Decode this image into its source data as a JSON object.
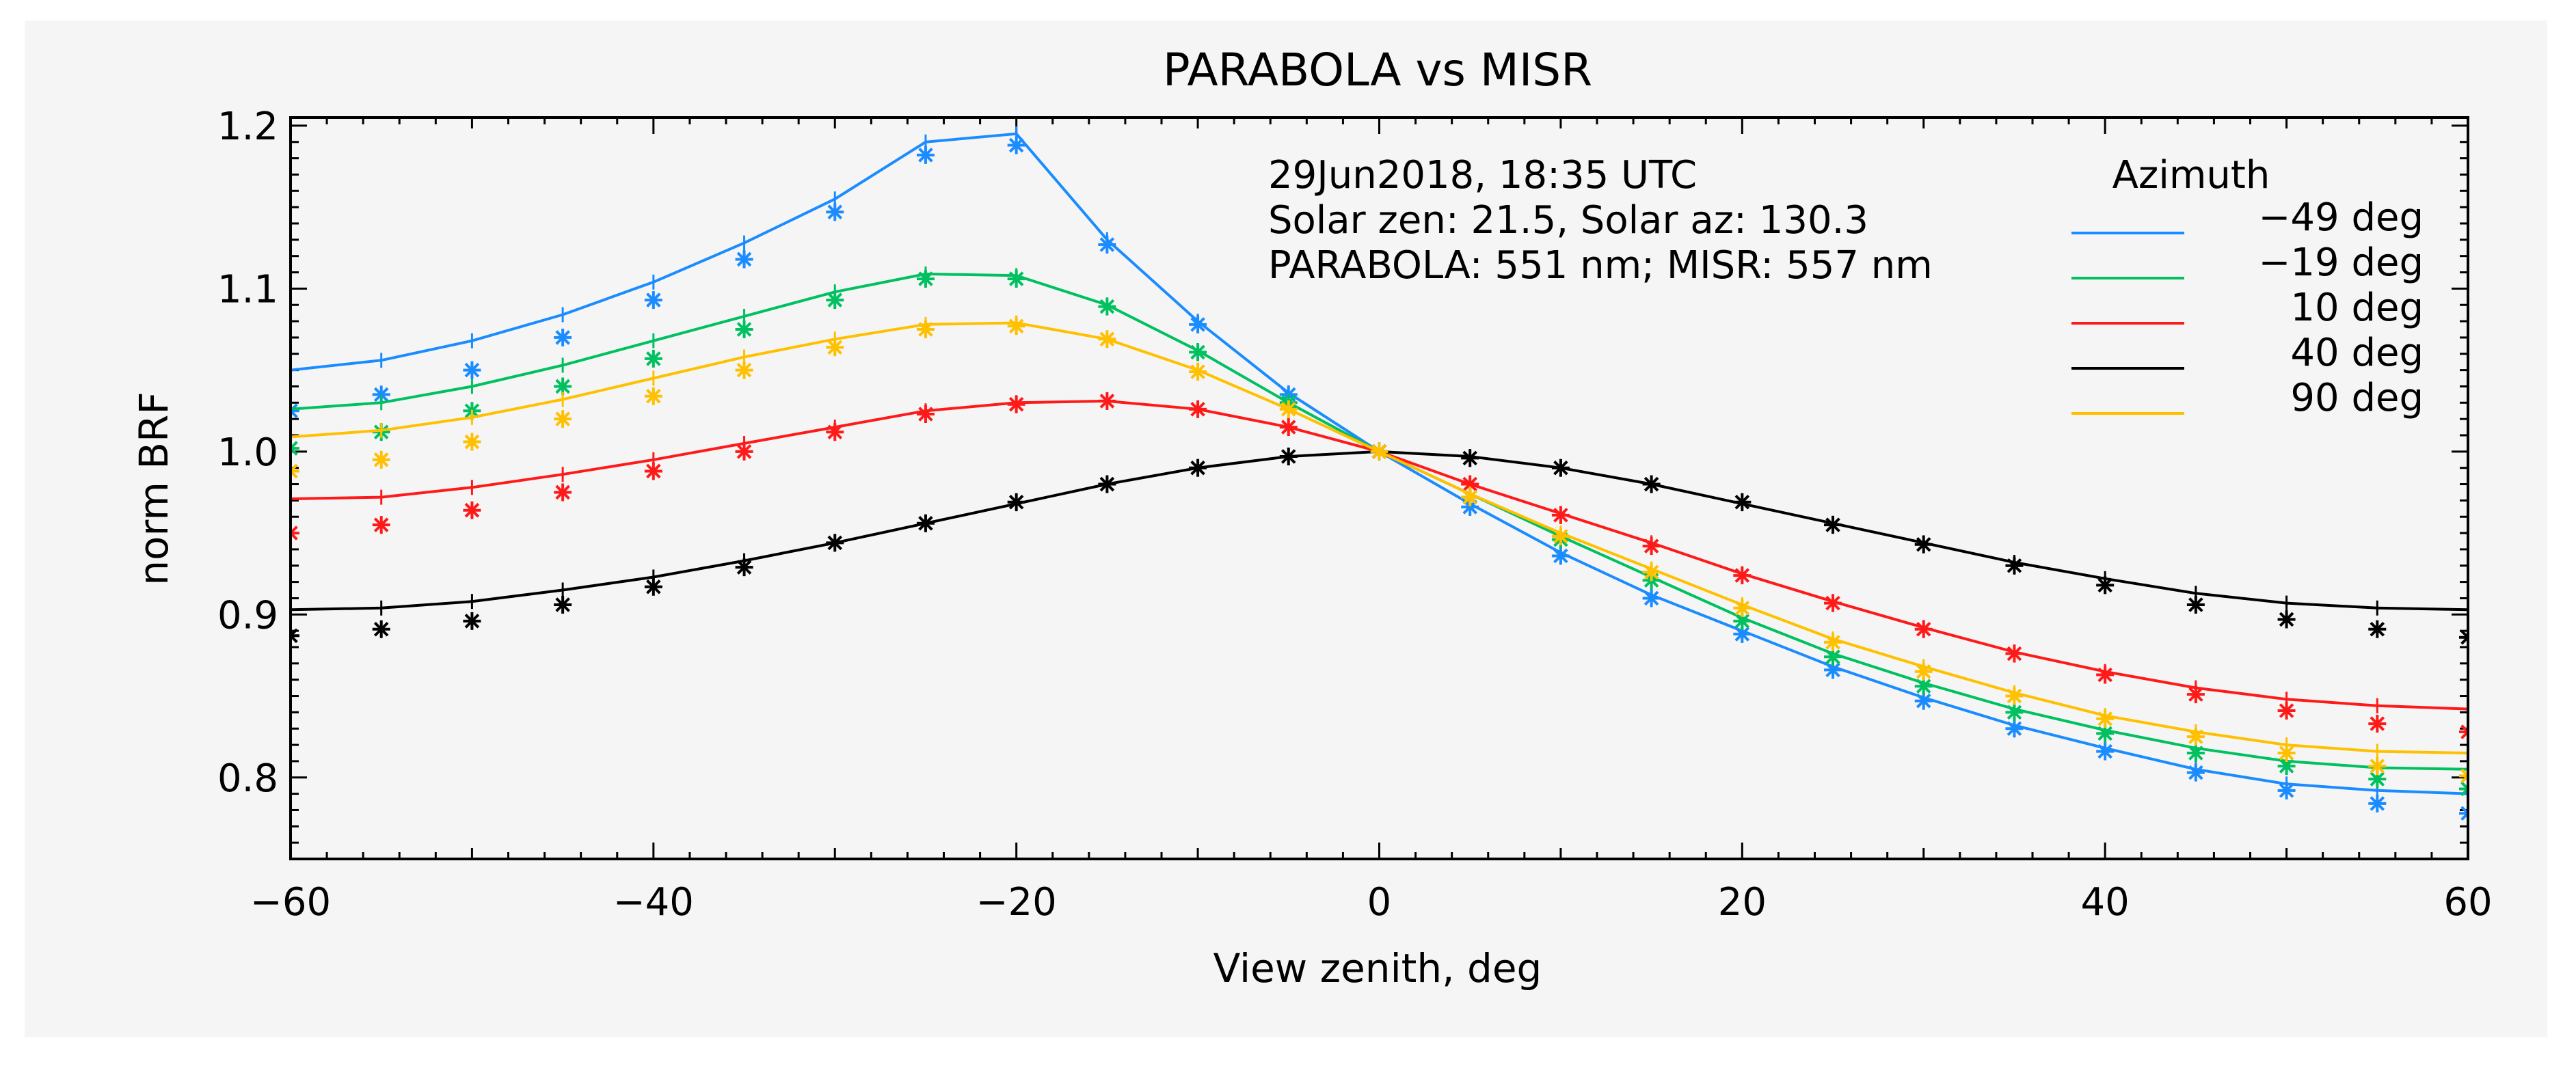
{
  "chart_data": {
    "type": "line",
    "title": "PARABOLA vs MISR",
    "xlabel": "View zenith, deg",
    "ylabel": "norm BRF",
    "xlim": [
      -60,
      60
    ],
    "ylim": [
      0.75,
      1.205
    ],
    "xticks": [
      -60,
      -40,
      -20,
      0,
      20,
      40,
      60
    ],
    "yticks": [
      0.8,
      0.9,
      1.0,
      1.1,
      1.2
    ],
    "xtick_labels": [
      "−60",
      "−40",
      "−20",
      "0",
      "20",
      "40",
      "60"
    ],
    "ytick_labels": [
      "0.8",
      "0.9",
      "1.0",
      "1.1",
      "1.2"
    ],
    "grid": false,
    "annotations": [
      "29Jun2018, 18:35 UTC",
      "Solar zen: 21.5, Solar az: 130.3",
      "PARABOLA: 551 nm; MISR: 557 nm"
    ],
    "legend_title": "Azimuth",
    "legend_position": "top-right",
    "x": [
      -60,
      -55,
      -50,
      -45,
      -40,
      -35,
      -30,
      -25,
      -20,
      -15,
      -10,
      -5,
      0,
      5,
      10,
      15,
      20,
      25,
      30,
      35,
      40,
      45,
      50,
      55,
      60
    ],
    "series": [
      {
        "name": "−49 deg",
        "color": "#1a8cff",
        "line": [
          1.05,
          1.056,
          1.068,
          1.084,
          1.104,
          1.128,
          1.155,
          1.19,
          1.195,
          1.13,
          1.08,
          1.036,
          1.0,
          0.968,
          0.938,
          0.912,
          0.89,
          0.868,
          0.849,
          0.832,
          0.818,
          0.805,
          0.796,
          0.792,
          0.79
        ],
        "markers": [
          1.025,
          1.035,
          1.05,
          1.07,
          1.093,
          1.118,
          1.147,
          1.182,
          1.188,
          1.127,
          1.078,
          1.035,
          1.0,
          0.966,
          0.936,
          0.91,
          0.888,
          0.866,
          0.847,
          0.83,
          0.816,
          0.803,
          0.792,
          0.784,
          0.778
        ]
      },
      {
        "name": "−19 deg",
        "color": "#00c060",
        "line": [
          1.026,
          1.03,
          1.04,
          1.053,
          1.068,
          1.083,
          1.098,
          1.109,
          1.108,
          1.09,
          1.062,
          1.03,
          1.0,
          0.974,
          0.948,
          0.923,
          0.898,
          0.876,
          0.858,
          0.842,
          0.829,
          0.818,
          0.81,
          0.806,
          0.805
        ],
        "markers": [
          1.002,
          1.012,
          1.025,
          1.04,
          1.057,
          1.075,
          1.093,
          1.106,
          1.106,
          1.089,
          1.061,
          1.03,
          1.0,
          0.972,
          0.946,
          0.921,
          0.896,
          0.874,
          0.856,
          0.84,
          0.827,
          0.815,
          0.807,
          0.799,
          0.793
        ]
      },
      {
        "name": "10 deg",
        "color": "#ff1a1a",
        "line": [
          0.971,
          0.972,
          0.978,
          0.986,
          0.995,
          1.005,
          1.015,
          1.025,
          1.03,
          1.031,
          1.026,
          1.015,
          1.0,
          0.98,
          0.962,
          0.944,
          0.925,
          0.908,
          0.892,
          0.877,
          0.865,
          0.855,
          0.848,
          0.844,
          0.842
        ],
        "markers": [
          0.95,
          0.955,
          0.964,
          0.975,
          0.988,
          1.0,
          1.012,
          1.023,
          1.029,
          1.031,
          1.026,
          1.015,
          1.0,
          0.98,
          0.961,
          0.942,
          0.924,
          0.907,
          0.891,
          0.876,
          0.863,
          0.851,
          0.841,
          0.833,
          0.828
        ]
      },
      {
        "name": "40 deg",
        "color": "#000000",
        "line": [
          0.903,
          0.904,
          0.908,
          0.915,
          0.923,
          0.933,
          0.944,
          0.956,
          0.968,
          0.98,
          0.99,
          0.997,
          1.0,
          0.997,
          0.99,
          0.98,
          0.968,
          0.956,
          0.944,
          0.932,
          0.922,
          0.913,
          0.907,
          0.904,
          0.903
        ],
        "markers": [
          0.887,
          0.891,
          0.896,
          0.906,
          0.917,
          0.929,
          0.944,
          0.956,
          0.969,
          0.98,
          0.99,
          0.997,
          1.0,
          0.996,
          0.99,
          0.98,
          0.969,
          0.955,
          0.943,
          0.93,
          0.918,
          0.906,
          0.897,
          0.891,
          0.886
        ]
      },
      {
        "name": "90 deg",
        "color": "#ffc000",
        "line": [
          1.009,
          1.013,
          1.021,
          1.032,
          1.045,
          1.058,
          1.069,
          1.078,
          1.079,
          1.069,
          1.05,
          1.026,
          1.0,
          0.974,
          0.95,
          0.928,
          0.906,
          0.885,
          0.868,
          0.852,
          0.838,
          0.828,
          0.82,
          0.816,
          0.815
        ],
        "markers": [
          0.988,
          0.995,
          1.006,
          1.02,
          1.034,
          1.05,
          1.064,
          1.075,
          1.077,
          1.069,
          1.049,
          1.026,
          1.0,
          0.972,
          0.948,
          0.926,
          0.904,
          0.883,
          0.865,
          0.85,
          0.836,
          0.825,
          0.815,
          0.807,
          0.801
        ]
      }
    ]
  }
}
